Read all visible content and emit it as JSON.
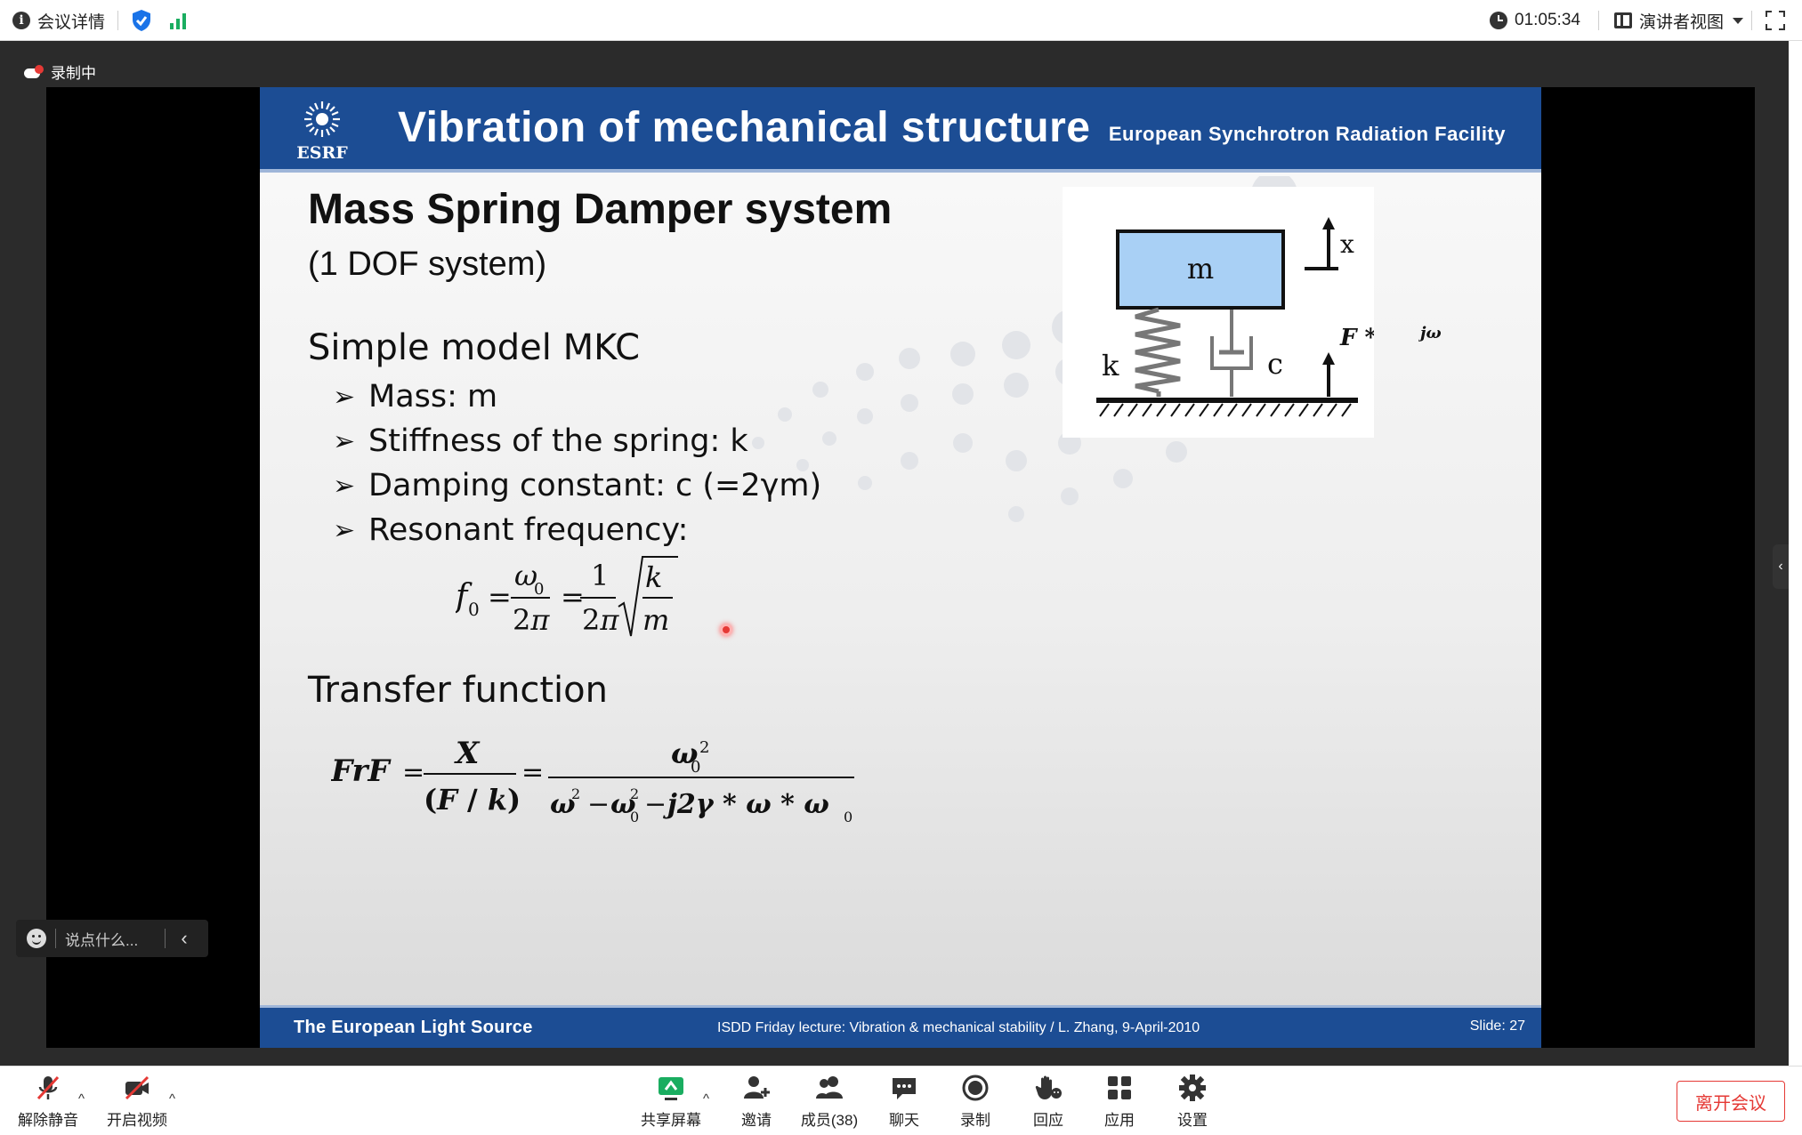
{
  "topbar": {
    "meeting_details": "会议详情",
    "timer": "01:05:34",
    "view_mode": "演讲者视图"
  },
  "stage": {
    "recording_label": "录制中",
    "chat_placeholder": "说点什么..."
  },
  "slide": {
    "title": "Vibration of mechanical structure",
    "org": "European Synchrotron Radiation Facility",
    "logo_text": "ESRF",
    "heading": "Mass Spring Damper system",
    "subheading": "(1 DOF system)",
    "section1": "Simple model MKC",
    "bullets": [
      "Mass: m",
      "Stiffness of the spring: k",
      "Damping constant: c (=2γm)",
      "Resonant frequency:"
    ],
    "section2": "Transfer function",
    "diagram": {
      "mass": "m",
      "spring": "k",
      "damper": "c",
      "displacement": "x",
      "force": "F * e",
      "force_exp": "jω"
    },
    "footer_left": "The European Light Source",
    "footer_mid": "ISDD Friday lecture: Vibration & mechanical stability / L. Zhang,  9-April-2010",
    "footer_right": "Slide: 27"
  },
  "toolbar": {
    "unmute": "解除静音",
    "start_video": "开启视频",
    "share_screen": "共享屏幕",
    "invite": "邀请",
    "members": "成员(38)",
    "chat": "聊天",
    "record": "录制",
    "reactions": "回应",
    "apps": "应用",
    "settings": "设置",
    "leave": "离开会议"
  },
  "colors": {
    "slide_header_blue": "#1c4d94",
    "mass_block": "#a9d0f5",
    "leave_red": "#e53935",
    "share_green": "#1aad60"
  }
}
